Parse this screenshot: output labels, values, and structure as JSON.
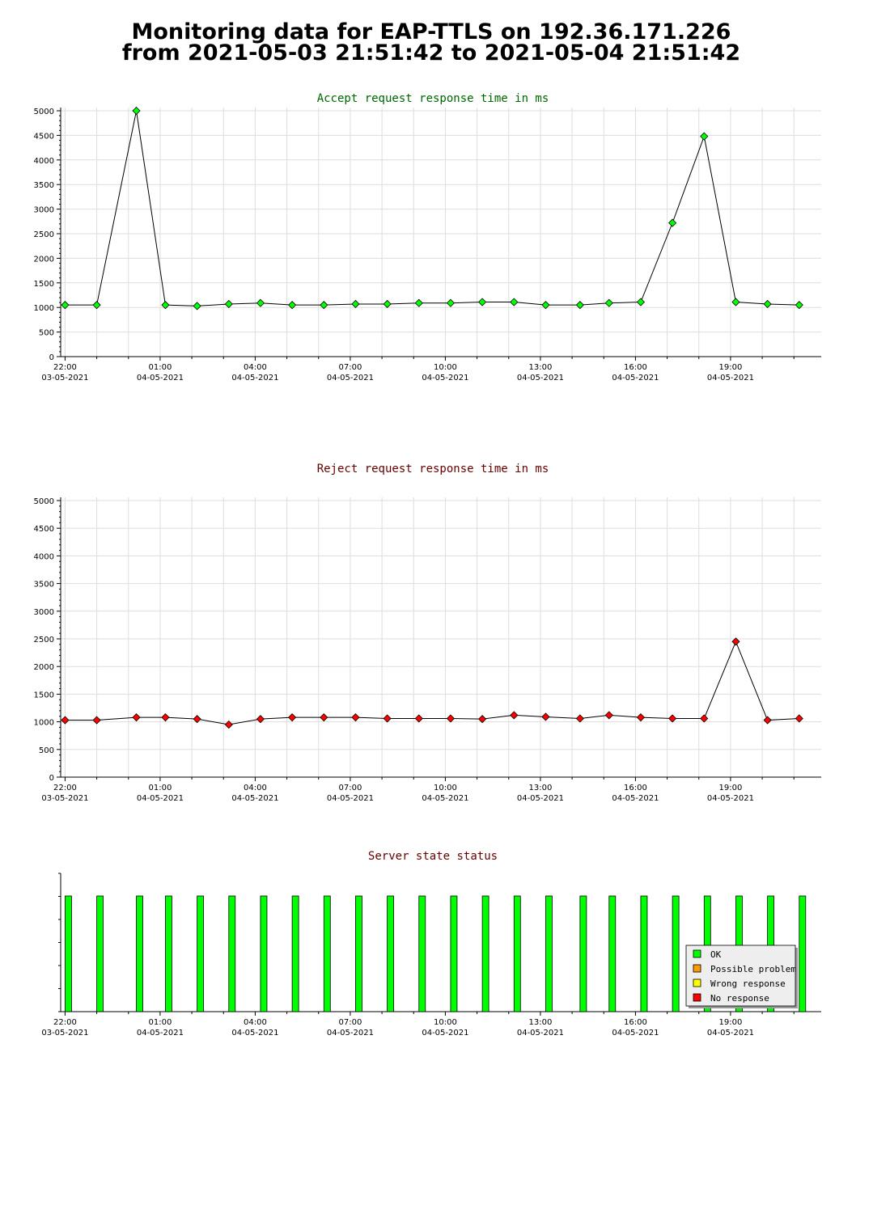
{
  "page": {
    "title_line1": "Monitoring data for EAP-TTLS on 192.36.171.226",
    "title_line2": "from 2021-05-03 21:51:42 to 2021-05-04 21:51:42"
  },
  "colors": {
    "accept_title": "#006600",
    "reject_title": "#660000",
    "status_title": "#660000",
    "accept_marker": "#00ff00",
    "reject_marker": "#ff0000",
    "line": "#000000",
    "ok": "#00ff00",
    "possible_problem": "#ff9900",
    "wrong_response": "#ffff00",
    "no_response": "#ff0000",
    "grid": "#dddddd"
  },
  "x_ticks": [
    {
      "time": "22:00",
      "date": "03-05-2021"
    },
    {
      "time": "01:00",
      "date": "04-05-2021"
    },
    {
      "time": "04:00",
      "date": "04-05-2021"
    },
    {
      "time": "07:00",
      "date": "04-05-2021"
    },
    {
      "time": "10:00",
      "date": "04-05-2021"
    },
    {
      "time": "13:00",
      "date": "04-05-2021"
    },
    {
      "time": "16:00",
      "date": "04-05-2021"
    },
    {
      "time": "19:00",
      "date": "04-05-2021"
    }
  ],
  "legend": {
    "items": [
      {
        "label": "OK",
        "color": "#00ff00"
      },
      {
        "label": "Possible problem",
        "color": "#ff9900"
      },
      {
        "label": "Wrong response",
        "color": "#ffff00"
      },
      {
        "label": "No response",
        "color": "#ff0000"
      }
    ]
  },
  "chart_data": [
    {
      "type": "line",
      "title": "Accept request response time in ms",
      "xlabel": "",
      "ylabel": "",
      "ylim": [
        0,
        5000
      ],
      "y_ticks": [
        0,
        500,
        1000,
        1500,
        2000,
        2500,
        3000,
        3500,
        4000,
        4500,
        5000
      ],
      "grid": true,
      "x": [
        "03-05-2021 22:00",
        "03-05-2021 23:00",
        "04-05-2021 00:15",
        "04-05-2021 01:10",
        "04-05-2021 02:10",
        "04-05-2021 03:10",
        "04-05-2021 04:10",
        "04-05-2021 05:10",
        "04-05-2021 06:10",
        "04-05-2021 07:10",
        "04-05-2021 08:10",
        "04-05-2021 09:10",
        "04-05-2021 10:10",
        "04-05-2021 11:10",
        "04-05-2021 12:10",
        "04-05-2021 13:10",
        "04-05-2021 14:15",
        "04-05-2021 15:10",
        "04-05-2021 16:10",
        "04-05-2021 17:10",
        "04-05-2021 18:10",
        "04-05-2021 19:10",
        "04-05-2021 20:10",
        "04-05-2021 21:10"
      ],
      "values": [
        1050,
        1050,
        5000,
        1050,
        1030,
        1070,
        1090,
        1050,
        1050,
        1070,
        1070,
        1090,
        1090,
        1110,
        1110,
        1050,
        1050,
        1090,
        1110,
        2720,
        4480,
        1110,
        1070,
        1050
      ]
    },
    {
      "type": "line",
      "title": "Reject request response time in ms",
      "xlabel": "",
      "ylabel": "",
      "ylim": [
        0,
        5000
      ],
      "y_ticks": [
        0,
        500,
        1000,
        1500,
        2000,
        2500,
        3000,
        3500,
        4000,
        4500,
        5000
      ],
      "grid": true,
      "x": [
        "03-05-2021 22:00",
        "03-05-2021 23:00",
        "04-05-2021 00:15",
        "04-05-2021 01:10",
        "04-05-2021 02:10",
        "04-05-2021 03:10",
        "04-05-2021 04:10",
        "04-05-2021 05:10",
        "04-05-2021 06:10",
        "04-05-2021 07:10",
        "04-05-2021 08:10",
        "04-05-2021 09:10",
        "04-05-2021 10:10",
        "04-05-2021 11:10",
        "04-05-2021 12:10",
        "04-05-2021 13:10",
        "04-05-2021 14:15",
        "04-05-2021 15:10",
        "04-05-2021 16:10",
        "04-05-2021 17:10",
        "04-05-2021 18:10",
        "04-05-2021 19:10",
        "04-05-2021 20:10",
        "04-05-2021 21:10"
      ],
      "values": [
        1030,
        1030,
        1080,
        1080,
        1050,
        950,
        1050,
        1080,
        1080,
        1080,
        1060,
        1060,
        1060,
        1050,
        1120,
        1090,
        1060,
        1120,
        1080,
        1060,
        1060,
        2450,
        1030,
        1060
      ]
    },
    {
      "type": "bar",
      "title": "Server state status",
      "xlabel": "",
      "ylabel": "",
      "legend": "bottom-right",
      "x": [
        "03-05-2021 22:00",
        "03-05-2021 23:00",
        "04-05-2021 00:15",
        "04-05-2021 01:10",
        "04-05-2021 02:10",
        "04-05-2021 03:10",
        "04-05-2021 04:10",
        "04-05-2021 05:10",
        "04-05-2021 06:10",
        "04-05-2021 07:10",
        "04-05-2021 08:10",
        "04-05-2021 09:10",
        "04-05-2021 10:10",
        "04-05-2021 11:10",
        "04-05-2021 12:10",
        "04-05-2021 13:10",
        "04-05-2021 14:15",
        "04-05-2021 15:10",
        "04-05-2021 16:10",
        "04-05-2021 17:10",
        "04-05-2021 18:10",
        "04-05-2021 19:10",
        "04-05-2021 20:10",
        "04-05-2021 21:10"
      ],
      "values": [
        "OK",
        "OK",
        "OK",
        "OK",
        "OK",
        "OK",
        "OK",
        "OK",
        "OK",
        "OK",
        "OK",
        "OK",
        "OK",
        "OK",
        "OK",
        "OK",
        "OK",
        "OK",
        "OK",
        "OK",
        "OK",
        "OK",
        "OK",
        "OK"
      ]
    }
  ]
}
